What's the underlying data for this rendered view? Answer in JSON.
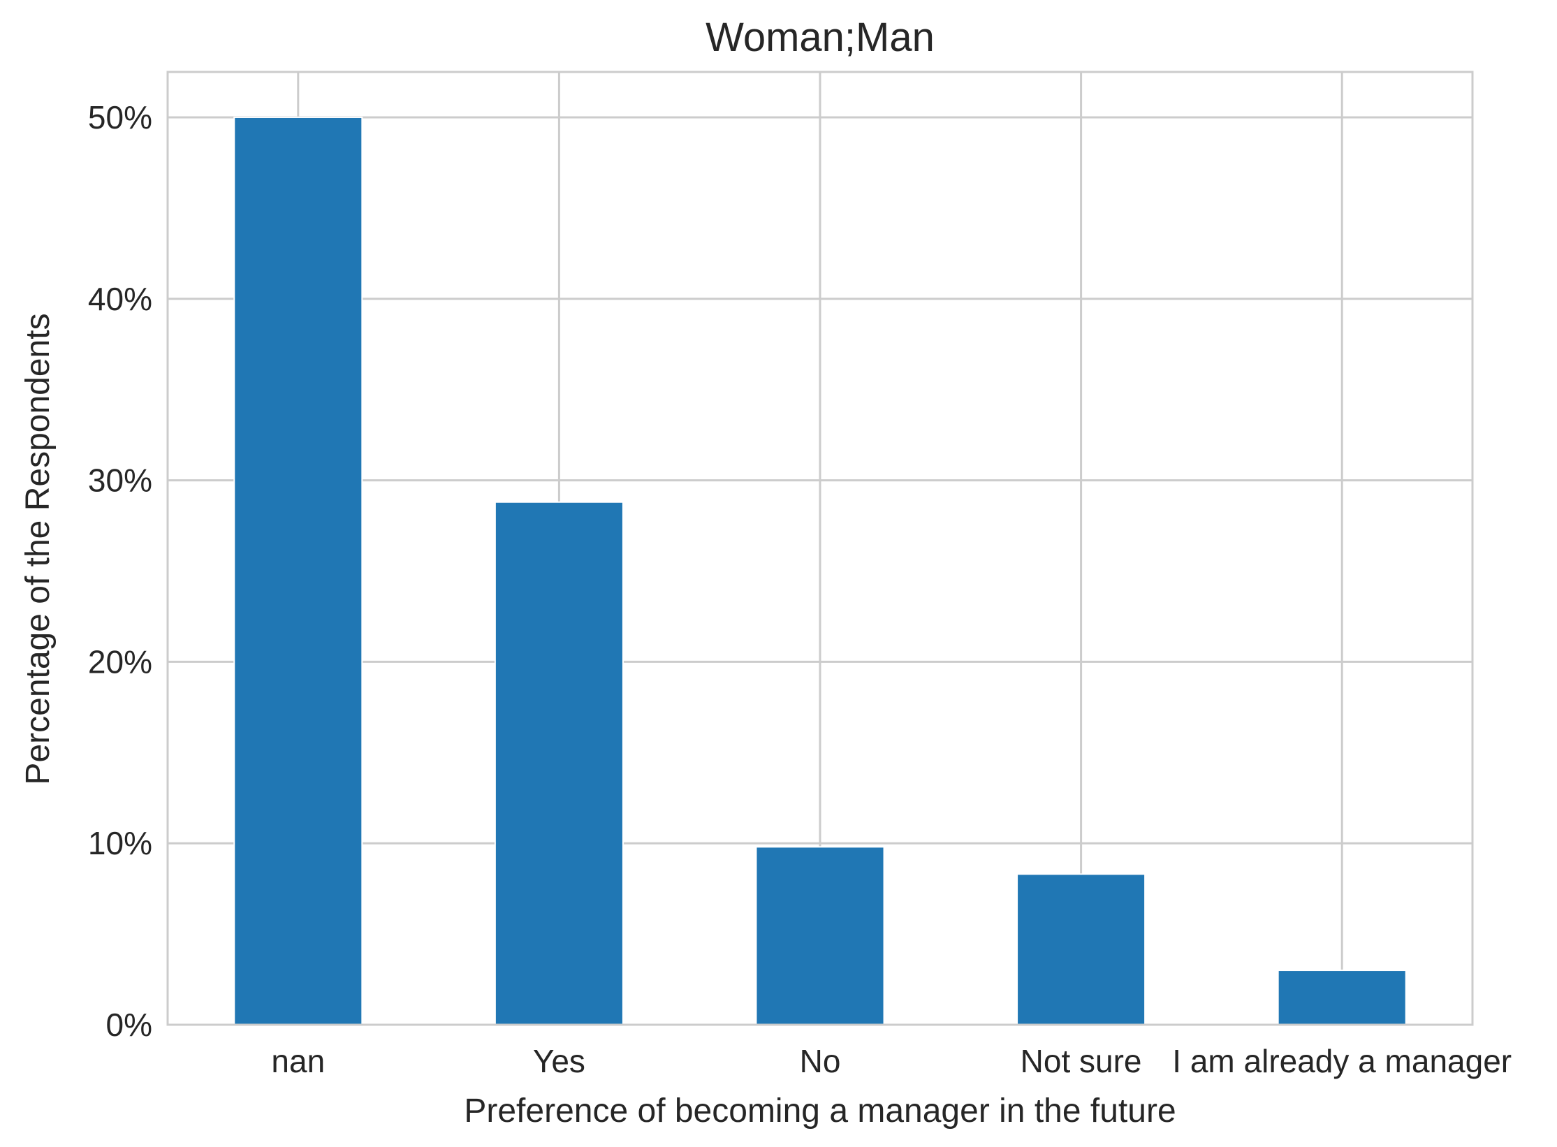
{
  "chart_data": {
    "type": "bar",
    "title": "Woman;Man",
    "xlabel": "Preference of becoming a manager in the future",
    "ylabel": "Percentage of the Respondents",
    "categories": [
      "nan",
      "Yes",
      "No",
      "Not sure",
      "I am already a manager"
    ],
    "values": [
      50.0,
      28.8,
      9.8,
      8.3,
      3.0
    ],
    "ylim": [
      0,
      52.5
    ],
    "yticks": [
      0,
      10,
      20,
      30,
      40,
      50
    ],
    "ytick_labels": [
      "0%",
      "10%",
      "20%",
      "30%",
      "40%",
      "50%"
    ],
    "grid": true,
    "bar_color": "#2077b4",
    "grid_color": "#cccccc",
    "text_color": "#262626"
  }
}
